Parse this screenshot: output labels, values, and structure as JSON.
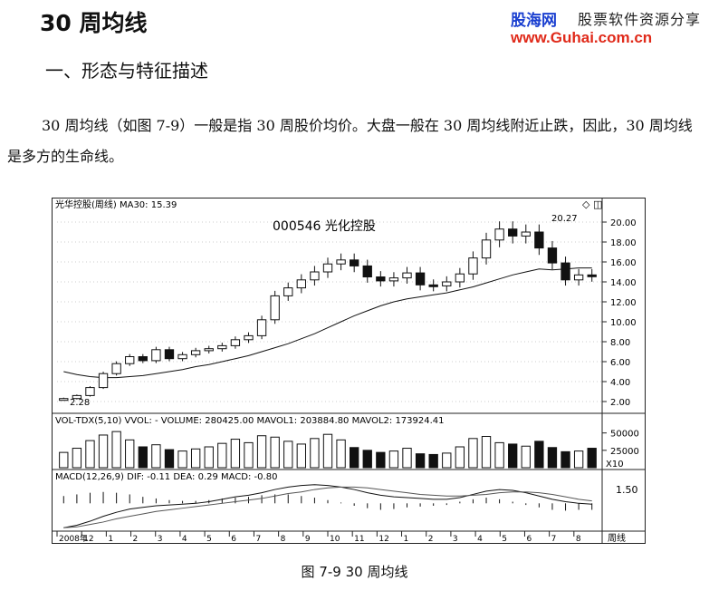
{
  "page": {
    "title": "30 周均线",
    "logo_cn": "股海网",
    "logo_slogan": "股票软件资源分享",
    "logo_url": "www.Guhai.com.cn",
    "section_heading": "一、形态与特征描述",
    "paragraph": "30 周均线（如图 7-9）一般是指 30 周股价均价。大盘一般在 30 周均线附近止跌，因此，30 周均线是多方的生命线。",
    "caption": "图 7-9    30 周均线"
  },
  "chart_data": {
    "type": "candlestick",
    "stock_title": "000546  光化控股",
    "price_panel_label": "光华控股(周线) MA30: 15.39",
    "volume_panel_label": "VOL-TDX(5,10) VVOL: -  VOLUME: 280425.00  MAVOL1: 203884.80  MAVOL2: 173924.41",
    "macd_panel_label": "MACD(12,26,9) DIF: -0.11  DEA: 0.29  MACD: -0.80",
    "price_ticks": [
      "20.00",
      "18.00",
      "16.00",
      "14.00",
      "12.00",
      "10.00",
      "8.00",
      "6.00",
      "4.00",
      "2.00"
    ],
    "price_range": [
      1,
      21
    ],
    "high_annotation": "20.27",
    "low_annotation": "2.28",
    "volume_ticks": [
      "50000",
      "25000"
    ],
    "volume_unit": "X10",
    "macd_tick": "1.50",
    "period_label": "周线",
    "x_labels": [
      "2008年",
      "12",
      "1",
      "2",
      "3",
      "4",
      "5",
      "6",
      "7",
      "8",
      "9",
      "10",
      "11",
      "12",
      "1",
      "2",
      "3",
      "4",
      "5",
      "6",
      "7",
      "8"
    ],
    "close_prices": [
      2.3,
      2.6,
      3.4,
      4.8,
      5.8,
      6.5,
      6.1,
      7.2,
      6.3,
      6.7,
      7.1,
      7.3,
      7.6,
      8.2,
      8.6,
      10.2,
      12.6,
      13.4,
      14.2,
      15.0,
      15.8,
      16.2,
      15.6,
      14.5,
      14.1,
      14.4,
      14.9,
      13.7,
      13.6,
      14.0,
      14.8,
      16.4,
      18.2,
      19.3,
      18.6,
      19.0,
      17.4,
      15.9,
      14.2,
      14.7,
      14.6
    ],
    "ma30": [
      5.0,
      4.7,
      4.5,
      4.4,
      4.4,
      4.5,
      4.6,
      4.8,
      5.0,
      5.2,
      5.5,
      5.7,
      6.0,
      6.3,
      6.6,
      7.0,
      7.4,
      7.8,
      8.3,
      8.8,
      9.4,
      10.0,
      10.6,
      11.1,
      11.6,
      12.0,
      12.3,
      12.5,
      12.7,
      12.9,
      13.2,
      13.5,
      13.9,
      14.3,
      14.7,
      15.0,
      15.3,
      15.2,
      15.3,
      15.4,
      15.4
    ],
    "volumes": [
      22000,
      28000,
      39000,
      47000,
      52000,
      40000,
      30000,
      33000,
      26000,
      24000,
      27000,
      30000,
      35000,
      41000,
      36000,
      46000,
      44000,
      38000,
      34000,
      42000,
      48000,
      40000,
      29000,
      25000,
      22000,
      24000,
      28000,
      20000,
      19000,
      21000,
      30000,
      42000,
      45000,
      36000,
      34000,
      31000,
      38000,
      29000,
      23000,
      24000,
      28000
    ],
    "macd_bars": [
      0.9,
      1.1,
      1.3,
      1.4,
      1.3,
      1.1,
      0.8,
      0.6,
      0.4,
      0.3,
      0.3,
      0.4,
      0.6,
      0.7,
      0.8,
      1.0,
      1.1,
      1.1,
      0.9,
      0.7,
      0.4,
      0.1,
      -0.3,
      -0.6,
      -0.8,
      -0.7,
      -0.5,
      -0.4,
      -0.3,
      -0.2,
      0.2,
      0.5,
      0.7,
      0.5,
      0.2,
      -0.2,
      -0.5,
      -0.8,
      -0.9,
      -0.8,
      -0.8
    ],
    "dif": [
      -3.0,
      -2.7,
      -2.2,
      -1.6,
      -1.1,
      -0.7,
      -0.5,
      -0.3,
      -0.2,
      -0.1,
      0.0,
      0.2,
      0.5,
      0.8,
      1.0,
      1.3,
      1.7,
      2.0,
      2.2,
      2.3,
      2.2,
      2.0,
      1.7,
      1.3,
      1.0,
      0.8,
      0.7,
      0.6,
      0.5,
      0.5,
      0.7,
      1.1,
      1.5,
      1.7,
      1.6,
      1.3,
      0.9,
      0.5,
      0.2,
      0.0,
      -0.1
    ],
    "dea": [
      -3.0,
      -2.9,
      -2.6,
      -2.3,
      -1.9,
      -1.6,
      -1.3,
      -1.0,
      -0.8,
      -0.6,
      -0.4,
      -0.2,
      0.0,
      0.2,
      0.4,
      0.6,
      0.9,
      1.2,
      1.4,
      1.7,
      1.9,
      2.0,
      2.0,
      1.9,
      1.7,
      1.5,
      1.3,
      1.1,
      1.0,
      0.9,
      0.9,
      1.0,
      1.1,
      1.3,
      1.4,
      1.4,
      1.3,
      1.1,
      0.8,
      0.5,
      0.3
    ]
  }
}
